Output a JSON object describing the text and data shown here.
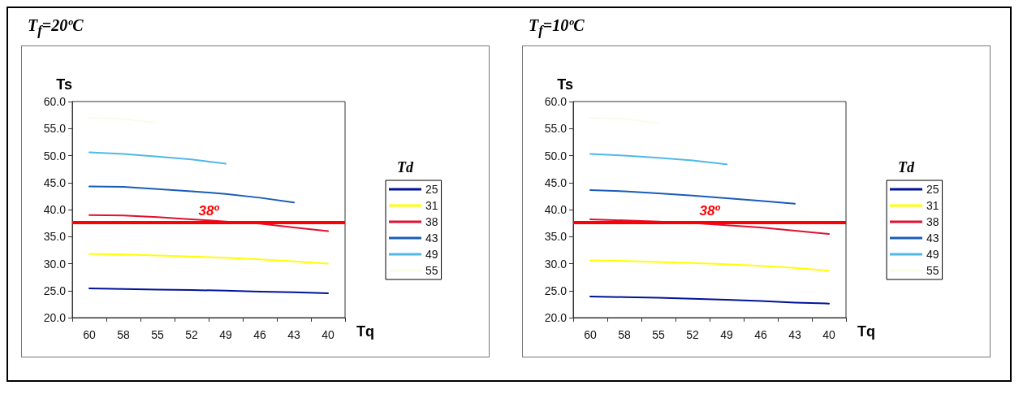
{
  "chart_data": [
    {
      "type": "line",
      "title": "T$_{f}$=20ºC",
      "xlabel": "Tq",
      "ylabel": "Ts",
      "legend_title": "Td",
      "legend": "right",
      "grid": false,
      "marker": "none",
      "line_style": "solid",
      "categories": [
        "60",
        "58",
        "55",
        "52",
        "49",
        "46",
        "43",
        "40"
      ],
      "ylim": [
        20,
        60
      ],
      "yticks": [
        {
          "value": 20,
          "label": "20.0"
        },
        {
          "value": 25,
          "label": "25.0"
        },
        {
          "value": 30,
          "label": "30.0"
        },
        {
          "value": 35,
          "label": "35.0"
        },
        {
          "value": 40,
          "label": "40.0"
        },
        {
          "value": 45,
          "label": "45.0"
        },
        {
          "value": 50,
          "label": "50.0"
        },
        {
          "value": 55,
          "label": "55.0"
        },
        {
          "value": 60,
          "label": "60.0"
        }
      ],
      "ref_lines": [
        {
          "axis": "y",
          "value": 37.7,
          "label": "38º",
          "color": "#ff0000"
        }
      ],
      "series": [
        {
          "name": "25",
          "color": "#00129a",
          "values": [
            25.4,
            25.3,
            25.2,
            25.1,
            25.0,
            24.8,
            24.7,
            24.5
          ]
        },
        {
          "name": "31",
          "color": "#ffff00",
          "values": [
            31.8,
            31.7,
            31.5,
            31.3,
            31.1,
            30.8,
            30.4,
            30.0
          ]
        },
        {
          "name": "38",
          "color": "#e0102f",
          "values": [
            39.0,
            38.9,
            38.6,
            38.2,
            37.8,
            37.4,
            36.7,
            36.0
          ]
        },
        {
          "name": "43",
          "color": "#1a5cb8",
          "values": [
            44.3,
            44.2,
            43.8,
            43.4,
            42.9,
            42.2,
            41.3,
            null
          ]
        },
        {
          "name": "49",
          "color": "#4fb8e8",
          "values": [
            50.6,
            50.3,
            49.8,
            49.3,
            48.5,
            null,
            null,
            null
          ]
        },
        {
          "name": "55",
          "color": "#fbfbe8",
          "values": [
            57.0,
            56.8,
            56.0,
            null,
            null,
            null,
            null,
            null
          ]
        }
      ]
    },
    {
      "type": "line",
      "title": "T$_{f}$=10ºC",
      "xlabel": "Tq",
      "ylabel": "Ts",
      "legend_title": "Td",
      "legend": "right",
      "grid": false,
      "marker": "none",
      "line_style": "solid",
      "categories": [
        "60",
        "58",
        "55",
        "52",
        "49",
        "46",
        "43",
        "40"
      ],
      "ylim": [
        20,
        60
      ],
      "yticks": [
        {
          "value": 20,
          "label": "20.0"
        },
        {
          "value": 25,
          "label": "25.0"
        },
        {
          "value": 30,
          "label": "30.0"
        },
        {
          "value": 35,
          "label": "35.0"
        },
        {
          "value": 40,
          "label": "40.0"
        },
        {
          "value": 45,
          "label": "45.0"
        },
        {
          "value": 50,
          "label": "50.0"
        },
        {
          "value": 55,
          "label": "55.0"
        },
        {
          "value": 60,
          "label": "60.0"
        }
      ],
      "ref_lines": [
        {
          "axis": "y",
          "value": 37.7,
          "label": "38º",
          "color": "#ff0000"
        }
      ],
      "series": [
        {
          "name": "25",
          "color": "#00129a",
          "values": [
            23.9,
            23.8,
            23.7,
            23.5,
            23.3,
            23.1,
            22.8,
            22.6
          ]
        },
        {
          "name": "31",
          "color": "#ffff00",
          "values": [
            30.6,
            30.5,
            30.3,
            30.1,
            29.9,
            29.6,
            29.2,
            28.7
          ]
        },
        {
          "name": "38",
          "color": "#e0102f",
          "values": [
            38.2,
            38.0,
            37.8,
            37.5,
            37.1,
            36.7,
            36.1,
            35.5
          ]
        },
        {
          "name": "43",
          "color": "#1a5cb8",
          "values": [
            43.6,
            43.4,
            43.0,
            42.6,
            42.1,
            41.6,
            41.1,
            null
          ]
        },
        {
          "name": "49",
          "color": "#4fb8e8",
          "values": [
            50.3,
            50.0,
            49.6,
            49.1,
            48.4,
            null,
            null,
            null
          ]
        },
        {
          "name": "55",
          "color": "#fbfbe8",
          "values": [
            57.0,
            56.8,
            56.0,
            null,
            null,
            null,
            null,
            null
          ]
        }
      ]
    }
  ]
}
